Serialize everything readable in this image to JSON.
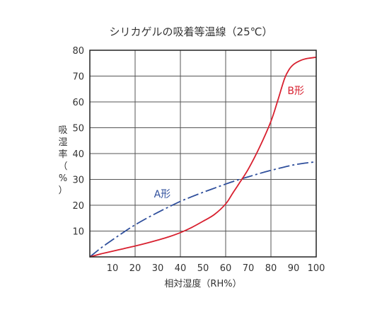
{
  "chart_data": {
    "type": "line",
    "title": "シリカゲルの吸着等温線（25℃）",
    "xlabel": "相対湿度（RH%）",
    "ylabel_chars": [
      "吸",
      "湿",
      "率",
      "（",
      "%",
      "）"
    ],
    "xlim": [
      0,
      100
    ],
    "ylim": [
      0,
      80
    ],
    "xticks": [
      "10",
      "20",
      "30",
      "40",
      "50",
      "60",
      "70",
      "80",
      "90",
      "100"
    ],
    "yticks": [
      "10",
      "20",
      "30",
      "40",
      "50",
      "60",
      "70",
      "80"
    ],
    "grid": true,
    "series": [
      {
        "name": "A形",
        "color": "#2f4f9c",
        "line_style": "dash-dot",
        "x": [
          0,
          5,
          10,
          15,
          20,
          25,
          30,
          35,
          40,
          45,
          50,
          55,
          60,
          65,
          70,
          75,
          80,
          85,
          90,
          95,
          100
        ],
        "y": [
          0,
          3.5,
          6.6,
          9.6,
          12.4,
          14.9,
          17.2,
          19.4,
          21.5,
          23.3,
          25.0,
          26.6,
          28.2,
          29.7,
          31.0,
          32.3,
          33.5,
          34.6,
          35.6,
          36.3,
          36.8
        ]
      },
      {
        "name": "B形",
        "color": "#d8202f",
        "line_style": "solid",
        "x": [
          0,
          5,
          10,
          15,
          20,
          25,
          30,
          35,
          40,
          45,
          50,
          55,
          60,
          63,
          66,
          70,
          75,
          80,
          83,
          86,
          88,
          90,
          93,
          96,
          100
        ],
        "y": [
          0,
          1.2,
          2.2,
          3.2,
          4.2,
          5.3,
          6.5,
          7.8,
          9.4,
          11.4,
          13.8,
          16.4,
          20.5,
          24.5,
          28.5,
          34.0,
          42.5,
          52.5,
          60.5,
          69.0,
          72.5,
          74.5,
          76.0,
          76.8,
          77.3
        ]
      }
    ],
    "series_label_positions": [
      {
        "series": "A形",
        "x": 32,
        "y": 23
      },
      {
        "series": "B形",
        "x": 91,
        "y": 63
      }
    ]
  }
}
